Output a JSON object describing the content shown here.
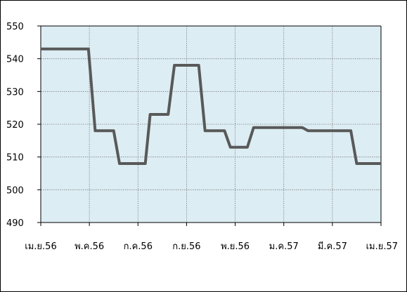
{
  "chart_data": {
    "type": "line",
    "title": "",
    "xlabel": "",
    "ylabel": "",
    "x_tick_labels": [
      "เม.ย.56",
      "พ.ค.56",
      "ก.ค.56",
      "ก.ย.56",
      "พ.ย.56",
      "ม.ค.57",
      "มี.ค.57",
      "เม.ย.57"
    ],
    "ylim": [
      490,
      550
    ],
    "y_ticks": [
      490,
      500,
      510,
      520,
      530,
      540,
      550
    ],
    "xlim": [
      0,
      7
    ],
    "grid": true,
    "plot_background": "#dcedf3",
    "series": [
      {
        "color": "#595959",
        "points": [
          [
            0,
            543
          ],
          [
            0.98,
            543
          ],
          [
            1.12,
            518
          ],
          [
            1.5,
            518
          ],
          [
            1.62,
            508
          ],
          [
            2.15,
            508
          ],
          [
            2.25,
            523
          ],
          [
            2.62,
            523
          ],
          [
            2.75,
            538
          ],
          [
            3.25,
            538
          ],
          [
            3.38,
            518
          ],
          [
            3.78,
            518
          ],
          [
            3.9,
            513
          ],
          [
            4.25,
            513
          ],
          [
            4.38,
            519
          ],
          [
            5.38,
            519
          ],
          [
            5.5,
            518
          ],
          [
            6.38,
            518
          ],
          [
            6.5,
            508
          ],
          [
            7,
            508
          ]
        ]
      }
    ]
  }
}
